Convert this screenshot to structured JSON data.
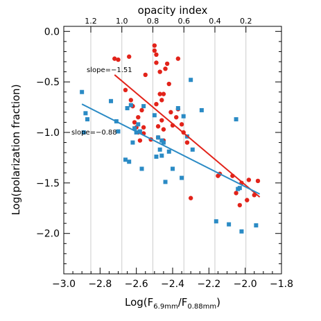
{
  "chart_data": {
    "type": "scatter",
    "xlabel_main": "Log(F",
    "xlabel_sub1": "6.9mm",
    "xlabel_mid": "/F",
    "xlabel_sub2": "0.88mm",
    "xlabel_end": ")",
    "ylabel": "Log(polarization fraction)",
    "top_axis_label": "opacity index",
    "xlim": [
      -3.0,
      -1.8
    ],
    "ylim": [
      -2.4,
      0.05
    ],
    "xticks": [
      -3.0,
      -2.8,
      -2.6,
      -2.4,
      -2.2,
      -2.0,
      -1.8
    ],
    "xtick_labels": [
      "−3.0",
      "−2.8",
      "−2.6",
      "−2.4",
      "−2.2",
      "−2.0",
      "−1.8"
    ],
    "yticks": [
      0.0,
      -0.5,
      -1.0,
      -1.5,
      -2.0
    ],
    "ytick_labels": [
      "0.0",
      "−0.5",
      "−1.0",
      "−1.5",
      "−2.0"
    ],
    "top_ticks": [
      {
        "label": "1.2",
        "x": -2.851
      },
      {
        "label": "1.0",
        "x": -2.68
      },
      {
        "label": "0.8",
        "x": -2.509
      },
      {
        "label": "0.6",
        "x": -2.338
      },
      {
        "label": "0.4",
        "x": -2.167
      },
      {
        "label": "0.2",
        "x": -1.996
      }
    ],
    "grid_lines_x": [
      -2.851,
      -2.68,
      -2.509,
      -2.338,
      -2.167,
      -1.996
    ],
    "series": [
      {
        "color": "#e2231a",
        "marker": "circle",
        "points": [
          [
            -2.72,
            -0.27
          ],
          [
            -2.7,
            -0.28
          ],
          [
            -2.66,
            -0.58
          ],
          [
            -2.64,
            -0.25
          ],
          [
            -2.63,
            -0.68
          ],
          [
            -2.62,
            -0.74
          ],
          [
            -2.61,
            -0.9
          ],
          [
            -2.6,
            -0.95
          ],
          [
            -2.59,
            -0.85
          ],
          [
            -2.59,
            -1.0
          ],
          [
            -2.58,
            -1.08
          ],
          [
            -2.57,
            -0.78
          ],
          [
            -2.56,
            -0.95
          ],
          [
            -2.56,
            -1.01
          ],
          [
            -2.55,
            -0.43
          ],
          [
            -2.52,
            -1.07
          ],
          [
            -2.5,
            -0.14
          ],
          [
            -2.5,
            -0.19
          ],
          [
            -2.49,
            -0.23
          ],
          [
            -2.49,
            -0.31
          ],
          [
            -2.49,
            -0.72
          ],
          [
            -2.48,
            -0.94
          ],
          [
            -2.48,
            -1.05
          ],
          [
            -2.47,
            -0.4
          ],
          [
            -2.47,
            -0.62
          ],
          [
            -2.46,
            -0.68
          ],
          [
            -2.46,
            -0.88
          ],
          [
            -2.45,
            -0.62
          ],
          [
            -2.45,
            -0.97
          ],
          [
            -2.45,
            -1.08
          ],
          [
            -2.44,
            -0.37
          ],
          [
            -2.43,
            -0.32
          ],
          [
            -2.42,
            -0.52
          ],
          [
            -2.41,
            -0.8
          ],
          [
            -2.4,
            -0.93
          ],
          [
            -2.38,
            -0.85
          ],
          [
            -2.37,
            -0.27
          ],
          [
            -2.37,
            -0.77
          ],
          [
            -2.35,
            -0.92
          ],
          [
            -2.34,
            -1.0
          ],
          [
            -2.32,
            -1.1
          ],
          [
            -2.3,
            -1.65
          ],
          [
            -2.15,
            -1.43
          ],
          [
            -2.14,
            -1.41
          ],
          [
            -2.07,
            -1.43
          ],
          [
            -2.05,
            -1.6
          ],
          [
            -2.03,
            -1.72
          ],
          [
            -2.02,
            -1.5
          ],
          [
            -1.99,
            -1.67
          ],
          [
            -1.98,
            -1.47
          ],
          [
            -1.95,
            -1.62
          ],
          [
            -1.93,
            -1.48
          ]
        ],
        "fit": {
          "slope_label": "slope=−1.51",
          "x": [
            -2.72,
            -1.92
          ],
          "y": [
            -0.43,
            -1.64
          ]
        }
      },
      {
        "color": "#2b8bc5",
        "marker": "square",
        "points": [
          [
            -2.9,
            -0.6
          ],
          [
            -2.89,
            -1.0
          ],
          [
            -2.88,
            -0.81
          ],
          [
            -2.87,
            -0.87
          ],
          [
            -2.74,
            -0.69
          ],
          [
            -2.71,
            -0.89
          ],
          [
            -2.7,
            -0.99
          ],
          [
            -2.66,
            -1.27
          ],
          [
            -2.65,
            -0.76
          ],
          [
            -2.64,
            -1.29
          ],
          [
            -2.63,
            -0.73
          ],
          [
            -2.62,
            -1.1
          ],
          [
            -2.61,
            -0.96
          ],
          [
            -2.6,
            -1.0
          ],
          [
            -2.59,
            -0.92
          ],
          [
            -2.58,
            -0.99
          ],
          [
            -2.57,
            -1.36
          ],
          [
            -2.56,
            -0.74
          ],
          [
            -2.5,
            -0.83
          ],
          [
            -2.49,
            -1.24
          ],
          [
            -2.48,
            -1.05
          ],
          [
            -2.47,
            -1.17
          ],
          [
            -2.46,
            -1.08
          ],
          [
            -2.46,
            -1.23
          ],
          [
            -2.45,
            -1.1
          ],
          [
            -2.44,
            -1.49
          ],
          [
            -2.42,
            -1.19
          ],
          [
            -2.4,
            -1.36
          ],
          [
            -2.37,
            -0.76
          ],
          [
            -2.35,
            -1.45
          ],
          [
            -2.34,
            -0.84
          ],
          [
            -2.32,
            -1.04
          ],
          [
            -2.3,
            -0.48
          ],
          [
            -2.29,
            -1.17
          ],
          [
            -2.24,
            -0.78
          ],
          [
            -2.16,
            -1.88
          ],
          [
            -2.09,
            -1.91
          ],
          [
            -2.05,
            -0.87
          ],
          [
            -2.04,
            -1.56
          ],
          [
            -2.03,
            -1.55
          ],
          [
            -2.02,
            -1.98
          ],
          [
            -1.94,
            -1.92
          ]
        ],
        "fit": {
          "slope_label": "slope=−0.88",
          "x": [
            -2.9,
            -1.92
          ],
          "y": [
            -0.72,
            -1.61
          ]
        }
      }
    ]
  }
}
